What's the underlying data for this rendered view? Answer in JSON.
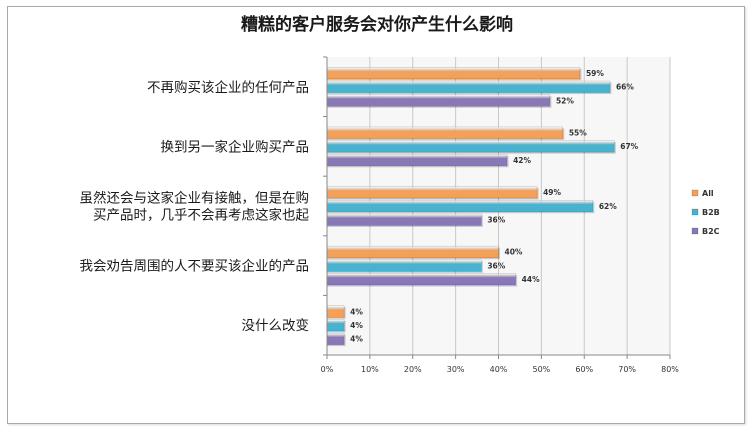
{
  "chart_data": {
    "type": "bar",
    "orientation": "horizontal",
    "title": "糟糕的客户服务会对你产生什么影响",
    "categories": [
      [
        "不再购买该企业的任何产品"
      ],
      [
        "换到另一家企业购买产品"
      ],
      [
        "虽然还会与这家企业有接触，但是在购",
        "买产品时，几乎不会再考虑这家也起"
      ],
      [
        "我会劝告周围的人不要买该企业的产品"
      ],
      [
        "没什么改变"
      ]
    ],
    "series": [
      {
        "name": "All",
        "color": "#f2a05a",
        "values": [
          59,
          55,
          49,
          40,
          4
        ],
        "labels": [
          "59%",
          "55%",
          "49%",
          "40%",
          "4%"
        ]
      },
      {
        "name": "B2B",
        "color": "#49b3cf",
        "values": [
          66,
          67,
          62,
          36,
          4
        ],
        "labels": [
          "66%",
          "67%",
          "62%",
          "36%",
          "4%"
        ]
      },
      {
        "name": "B2C",
        "color": "#8878b5",
        "values": [
          52,
          42,
          36,
          44,
          4
        ],
        "labels": [
          "52%",
          "42%",
          "36%",
          "44%",
          "4%"
        ]
      }
    ],
    "xlim": [
      0,
      80
    ],
    "x_ticks": [
      "0%",
      "10%",
      "20%",
      "30%",
      "40%",
      "50%",
      "60%",
      "70%",
      "80%"
    ],
    "grid": true,
    "legend_position": "right"
  }
}
